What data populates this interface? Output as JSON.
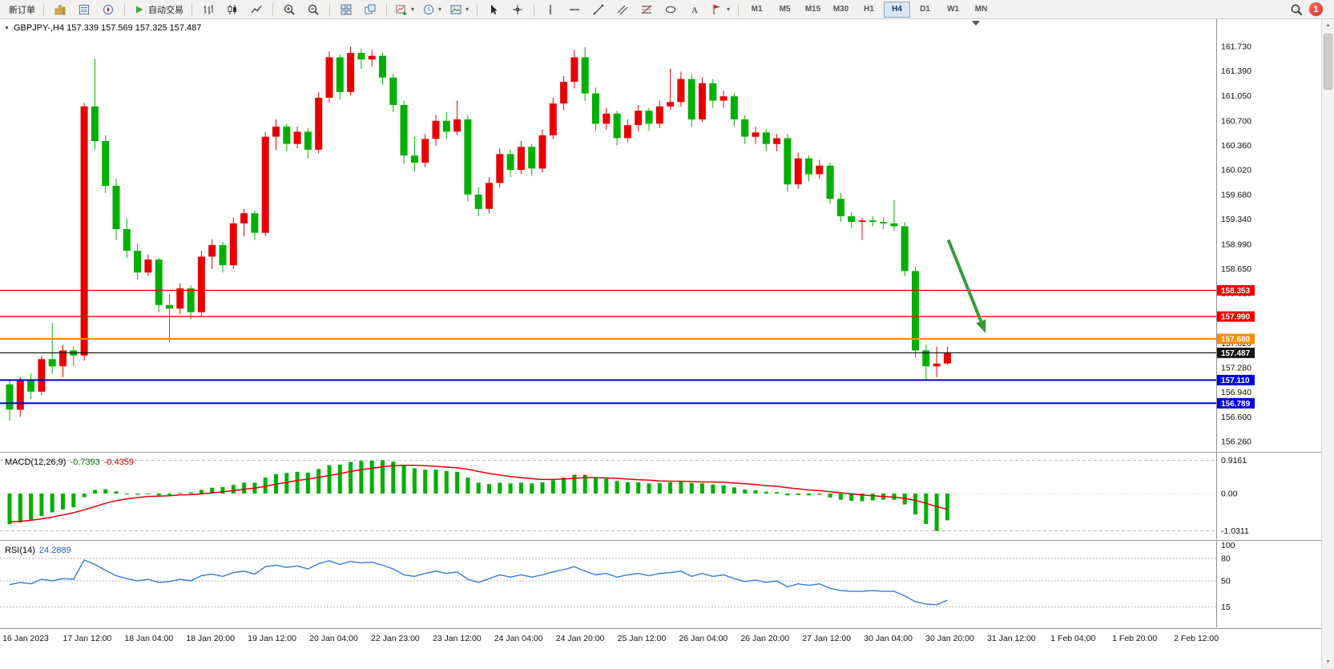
{
  "toolbar": {
    "groups": [
      {
        "items": [
          {
            "name": "new-order",
            "label": "新订单"
          }
        ]
      },
      {
        "items": [
          {
            "name": "market-watch"
          },
          {
            "name": "data-window"
          },
          {
            "name": "navigator"
          }
        ]
      },
      {
        "items": [
          {
            "name": "auto-trading",
            "label": "自动交易",
            "icon": "auto-trading-play"
          }
        ]
      },
      {
        "items": [
          {
            "name": "bar-chart"
          },
          {
            "name": "candlestick-chart"
          },
          {
            "name": "line-chart"
          }
        ]
      },
      {
        "items": [
          {
            "name": "zoom-in"
          },
          {
            "name": "zoom-out"
          }
        ]
      },
      {
        "items": [
          {
            "name": "tile-windows"
          },
          {
            "name": "cascade-windows"
          }
        ]
      },
      {
        "items": [
          {
            "name": "new-chart",
            "caret": true
          },
          {
            "name": "periods-clock",
            "caret": true
          },
          {
            "name": "templates-image",
            "caret": true
          }
        ]
      },
      {
        "items": [
          {
            "name": "cursor"
          },
          {
            "name": "crosshair"
          }
        ]
      },
      {
        "items": [
          {
            "name": "vertical-line"
          },
          {
            "name": "horizontal-line"
          },
          {
            "name": "trendline"
          },
          {
            "name": "channel"
          },
          {
            "name": "fibonacci"
          },
          {
            "name": "shapes-ellipse"
          },
          {
            "name": "text-label"
          },
          {
            "name": "arrows-flag",
            "caret": true
          }
        ]
      }
    ],
    "timeframes": [
      "M1",
      "M5",
      "M15",
      "M30",
      "H1",
      "H4",
      "D1",
      "W1",
      "MN"
    ],
    "active_timeframe": "H4",
    "notification_count": "1"
  },
  "chart": {
    "symbol_quote": "GBPJPY-,H4  157.339 157.569 157.325 157.487",
    "price_axis_labels": [
      "161.730",
      "161.390",
      "161.050",
      "160.700",
      "160.360",
      "160.020",
      "159.680",
      "159.340",
      "158.990",
      "158.650",
      "158.310",
      "157.970",
      "157.620",
      "157.280",
      "156.940",
      "156.600",
      "156.260"
    ],
    "time_axis_labels": [
      "16 Jan 2023",
      "17 Jan 12:00",
      "18 Jan 04:00",
      "18 Jan 20:00",
      "19 Jan 12:00",
      "20 Jan 04:00",
      "22 Jan 23:00",
      "23 Jan 12:00",
      "24 Jan 04:00",
      "24 Jan 20:00",
      "25 Jan 12:00",
      "26 Jan 04:00",
      "26 Jan 20:00",
      "27 Jan 12:00",
      "30 Jan 04:00",
      "30 Jan 20:00",
      "31 Jan 12:00",
      "1 Feb 04:00",
      "1 Feb 20:00",
      "2 Feb 12:00"
    ],
    "hlines": [
      {
        "price": 158.353,
        "tag": "158.353",
        "color": "#f00000",
        "width": 1.4
      },
      {
        "price": 157.99,
        "tag": "157.990",
        "color": "#f00000",
        "width": 1.4
      },
      {
        "price": 157.68,
        "tag": "157.680",
        "color": "#ff8a00",
        "width": 2
      },
      {
        "price": 157.487,
        "tag": "157.487",
        "color": "#161616",
        "width": 1.2
      },
      {
        "price": 157.11,
        "tag": "157.110",
        "color": "#0000d8",
        "width": 2
      },
      {
        "price": 156.789,
        "tag": "156.789",
        "color": "#0000d8",
        "width": 2
      }
    ],
    "colors": {
      "up": "#e80000",
      "down": "#00b000",
      "macd_histogram": "#00b000",
      "macd_signal": "#e80000",
      "rsi_line": "#2f7ed8",
      "arrow": "#3a9a3a"
    }
  },
  "chart_data": {
    "type": "candlestick",
    "symbol": "GBPJPY-",
    "timeframe": "H4",
    "ohlc_current": {
      "open": "157.339",
      "high": "157.569",
      "low": "157.325",
      "close": "157.487"
    },
    "candles": [
      [
        157.05,
        157.1,
        156.55,
        156.7
      ],
      [
        156.7,
        157.15,
        156.6,
        157.1
      ],
      [
        157.1,
        157.2,
        156.85,
        156.95
      ],
      [
        156.95,
        157.45,
        156.9,
        157.4
      ],
      [
        157.4,
        157.9,
        157.2,
        157.3
      ],
      [
        157.3,
        157.6,
        157.15,
        157.52
      ],
      [
        157.52,
        157.58,
        157.3,
        157.45
      ],
      [
        157.45,
        160.95,
        157.38,
        160.9
      ],
      [
        160.9,
        161.56,
        160.3,
        160.42
      ],
      [
        160.42,
        160.5,
        159.7,
        159.8
      ],
      [
        159.8,
        159.9,
        159.05,
        159.2
      ],
      [
        159.2,
        159.35,
        158.8,
        158.9
      ],
      [
        158.9,
        159.0,
        158.5,
        158.6
      ],
      [
        158.6,
        158.85,
        158.55,
        158.78
      ],
      [
        158.78,
        158.8,
        158.05,
        158.15
      ],
      [
        158.15,
        158.3,
        157.63,
        158.1
      ],
      [
        158.1,
        158.45,
        158.02,
        158.38
      ],
      [
        158.38,
        158.42,
        157.95,
        158.05
      ],
      [
        158.05,
        158.9,
        158.0,
        158.82
      ],
      [
        158.82,
        159.06,
        158.65,
        158.98
      ],
      [
        158.98,
        159.02,
        158.6,
        158.7
      ],
      [
        158.7,
        159.36,
        158.65,
        159.28
      ],
      [
        159.28,
        159.48,
        159.1,
        159.42
      ],
      [
        159.42,
        159.46,
        159.05,
        159.15
      ],
      [
        159.15,
        160.55,
        159.1,
        160.48
      ],
      [
        160.48,
        160.72,
        160.3,
        160.62
      ],
      [
        160.62,
        160.66,
        160.28,
        160.38
      ],
      [
        160.38,
        160.62,
        160.32,
        160.55
      ],
      [
        160.55,
        160.6,
        160.18,
        160.3
      ],
      [
        160.3,
        161.1,
        160.25,
        161.02
      ],
      [
        161.02,
        161.66,
        160.95,
        161.58
      ],
      [
        161.58,
        161.62,
        161.0,
        161.1
      ],
      [
        161.1,
        161.73,
        161.05,
        161.64
      ],
      [
        161.64,
        161.7,
        161.42,
        161.55
      ],
      [
        161.55,
        161.68,
        161.45,
        161.6
      ],
      [
        161.6,
        161.64,
        161.2,
        161.3
      ],
      [
        161.3,
        161.35,
        160.82,
        160.92
      ],
      [
        160.92,
        160.98,
        160.1,
        160.22
      ],
      [
        160.22,
        160.48,
        160.0,
        160.12
      ],
      [
        160.12,
        160.52,
        160.06,
        160.45
      ],
      [
        160.45,
        160.78,
        160.35,
        160.7
      ],
      [
        160.7,
        160.82,
        160.45,
        160.55
      ],
      [
        160.55,
        160.98,
        160.5,
        160.72
      ],
      [
        160.72,
        160.78,
        159.58,
        159.68
      ],
      [
        159.68,
        159.78,
        159.38,
        159.48
      ],
      [
        159.48,
        159.92,
        159.42,
        159.84
      ],
      [
        159.84,
        160.32,
        159.78,
        160.24
      ],
      [
        160.24,
        160.3,
        159.92,
        160.02
      ],
      [
        160.02,
        160.42,
        159.96,
        160.34
      ],
      [
        160.34,
        160.38,
        159.94,
        160.04
      ],
      [
        160.04,
        160.58,
        159.98,
        160.5
      ],
      [
        160.5,
        161.02,
        160.45,
        160.94
      ],
      [
        160.94,
        161.32,
        160.85,
        161.24
      ],
      [
        161.24,
        161.68,
        161.15,
        161.58
      ],
      [
        161.58,
        161.72,
        160.98,
        161.08
      ],
      [
        161.08,
        161.16,
        160.56,
        160.66
      ],
      [
        160.66,
        160.88,
        160.58,
        160.8
      ],
      [
        160.8,
        160.84,
        160.36,
        160.46
      ],
      [
        160.46,
        160.72,
        160.4,
        160.64
      ],
      [
        160.64,
        160.92,
        160.55,
        160.84
      ],
      [
        160.84,
        160.88,
        160.56,
        160.66
      ],
      [
        160.66,
        160.98,
        160.6,
        160.9
      ],
      [
        160.9,
        161.42,
        160.85,
        160.96
      ],
      [
        160.96,
        161.38,
        160.9,
        161.28
      ],
      [
        161.28,
        161.34,
        160.62,
        160.72
      ],
      [
        160.72,
        161.3,
        160.68,
        161.22
      ],
      [
        161.22,
        161.28,
        160.88,
        160.98
      ],
      [
        160.98,
        161.12,
        160.88,
        161.04
      ],
      [
        161.04,
        161.08,
        160.62,
        160.72
      ],
      [
        160.72,
        160.78,
        160.38,
        160.48
      ],
      [
        160.48,
        160.62,
        160.38,
        160.54
      ],
      [
        160.54,
        160.58,
        160.28,
        160.38
      ],
      [
        160.38,
        160.52,
        160.28,
        160.46
      ],
      [
        160.46,
        160.52,
        159.72,
        159.82
      ],
      [
        159.82,
        160.26,
        159.76,
        160.18
      ],
      [
        160.18,
        160.22,
        159.86,
        159.96
      ],
      [
        159.96,
        160.16,
        159.9,
        160.08
      ],
      [
        160.08,
        160.12,
        159.55,
        159.62
      ],
      [
        159.62,
        159.7,
        159.3,
        159.38
      ],
      [
        159.38,
        159.44,
        159.22,
        159.3
      ],
      [
        159.3,
        159.36,
        159.05,
        159.32
      ],
      [
        159.32,
        159.38,
        159.24,
        159.3
      ],
      [
        159.3,
        159.36,
        159.2,
        159.28
      ],
      [
        159.28,
        159.6,
        159.18,
        159.24
      ],
      [
        159.24,
        159.3,
        158.55,
        158.62
      ],
      [
        158.62,
        158.68,
        157.42,
        157.52
      ],
      [
        157.52,
        157.6,
        157.12,
        157.3
      ],
      [
        157.3,
        157.57,
        157.15,
        157.34
      ],
      [
        157.339,
        157.569,
        157.325,
        157.487
      ]
    ],
    "macd": {
      "label": "MACD(12,26,9)",
      "value_main": "-0.7393",
      "value_signal": "-0.4359",
      "axis_labels": [
        {
          "text": "0.9161",
          "value": 0.9161
        },
        {
          "text": "0.00",
          "value": 0
        },
        {
          "text": "-1.0311",
          "value": -1.0311
        }
      ],
      "histogram": [
        -0.85,
        -0.8,
        -0.72,
        -0.62,
        -0.52,
        -0.44,
        -0.38,
        -0.1,
        0.1,
        0.12,
        0.06,
        0.0,
        -0.03,
        -0.02,
        -0.05,
        -0.04,
        0.02,
        0.03,
        0.1,
        0.16,
        0.18,
        0.24,
        0.3,
        0.3,
        0.44,
        0.54,
        0.57,
        0.6,
        0.58,
        0.68,
        0.78,
        0.8,
        0.87,
        0.9,
        0.91,
        0.92,
        0.88,
        0.78,
        0.7,
        0.66,
        0.66,
        0.62,
        0.6,
        0.44,
        0.3,
        0.26,
        0.3,
        0.28,
        0.3,
        0.28,
        0.31,
        0.37,
        0.44,
        0.52,
        0.52,
        0.45,
        0.41,
        0.35,
        0.31,
        0.31,
        0.28,
        0.29,
        0.31,
        0.34,
        0.29,
        0.28,
        0.25,
        0.23,
        0.17,
        0.11,
        0.09,
        0.05,
        0.04,
        -0.05,
        -0.04,
        -0.05,
        -0.03,
        -0.11,
        -0.17,
        -0.2,
        -0.21,
        -0.19,
        -0.17,
        -0.17,
        -0.3,
        -0.58,
        -0.84,
        -1.03,
        -0.7393
      ],
      "signal": [
        -0.78,
        -0.77,
        -0.74,
        -0.7,
        -0.65,
        -0.59,
        -0.53,
        -0.45,
        -0.36,
        -0.27,
        -0.2,
        -0.15,
        -0.11,
        -0.08,
        -0.07,
        -0.06,
        -0.04,
        -0.03,
        -0.01,
        0.02,
        0.05,
        0.08,
        0.12,
        0.15,
        0.2,
        0.26,
        0.31,
        0.36,
        0.4,
        0.45,
        0.5,
        0.55,
        0.61,
        0.66,
        0.7,
        0.74,
        0.77,
        0.78,
        0.78,
        0.77,
        0.75,
        0.73,
        0.71,
        0.67,
        0.61,
        0.55,
        0.51,
        0.47,
        0.44,
        0.41,
        0.39,
        0.39,
        0.4,
        0.42,
        0.44,
        0.44,
        0.43,
        0.42,
        0.4,
        0.38,
        0.37,
        0.35,
        0.34,
        0.34,
        0.33,
        0.32,
        0.32,
        0.31,
        0.29,
        0.27,
        0.25,
        0.22,
        0.2,
        0.16,
        0.13,
        0.1,
        0.08,
        0.05,
        0.02,
        -0.01,
        -0.04,
        -0.06,
        -0.08,
        -0.1,
        -0.13,
        -0.19,
        -0.27,
        -0.36,
        -0.4359
      ]
    },
    "rsi": {
      "label": "RSI(14)",
      "value": "24.2889",
      "axis_labels": [
        {
          "text": "100",
          "value": 100
        },
        {
          "text": "80",
          "value": 80
        },
        {
          "text": "50",
          "value": 50
        },
        {
          "text": "15",
          "value": 15
        }
      ],
      "levels": [
        80,
        50,
        15
      ],
      "series": [
        45,
        48,
        46,
        52,
        50,
        53,
        52,
        78,
        72,
        64,
        57,
        53,
        50,
        52,
        48,
        49,
        52,
        50,
        57,
        59,
        56,
        61,
        63,
        59,
        69,
        71,
        68,
        70,
        66,
        73,
        77,
        72,
        76,
        74,
        75,
        71,
        66,
        58,
        56,
        60,
        63,
        60,
        62,
        52,
        48,
        53,
        58,
        55,
        58,
        55,
        58,
        62,
        65,
        69,
        63,
        58,
        60,
        55,
        58,
        60,
        57,
        60,
        61,
        63,
        56,
        60,
        56,
        58,
        53,
        49,
        51,
        48,
        50,
        42,
        46,
        44,
        46,
        40,
        37,
        36,
        36,
        37,
        36,
        36,
        30,
        22,
        19,
        18,
        24.2889
      ]
    },
    "arrow_annotation": {
      "start_bar": 88.1,
      "start_price": 159.05,
      "end_bar": 91.6,
      "end_price": 157.76
    }
  }
}
